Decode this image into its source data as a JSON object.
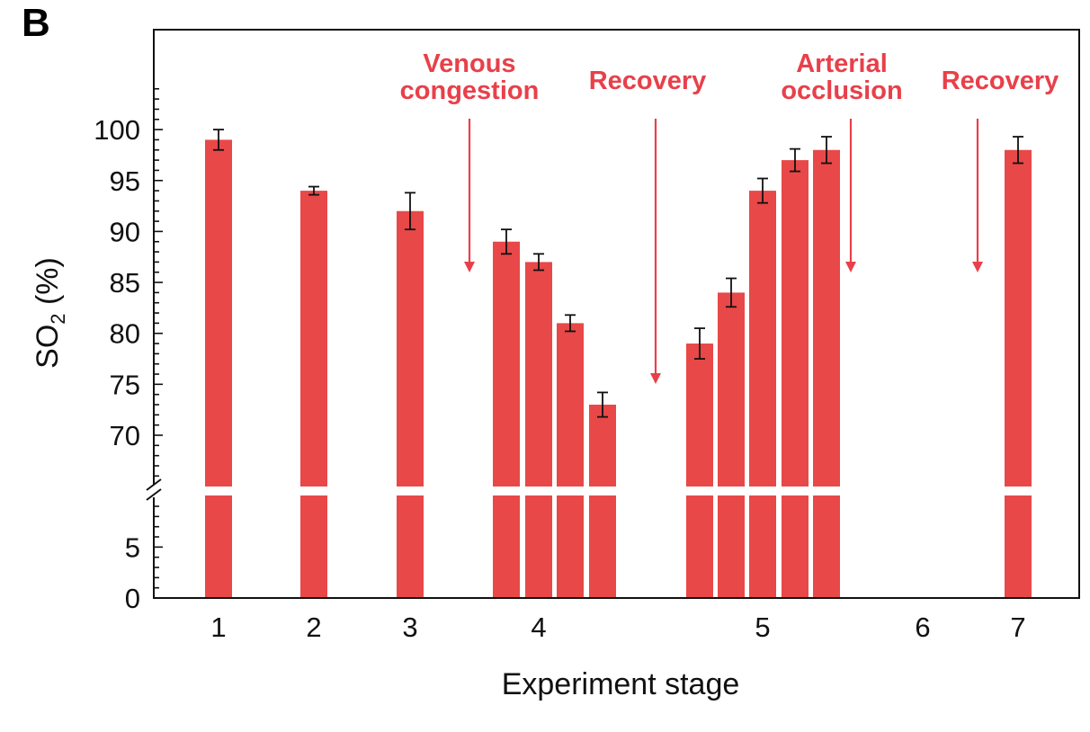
{
  "panel_label": "B",
  "chart_data": {
    "type": "bar",
    "xlabel": "Experiment stage",
    "ylabel": "SO",
    "ylabel_subscript": "2",
    "ylabel_suffix": " (%)",
    "x_ticks": [
      "1",
      "2",
      "3",
      "4",
      "5",
      "6",
      "7"
    ],
    "y_ticks_lower": [
      "0",
      "5"
    ],
    "y_ticks_upper": [
      "70",
      "75",
      "80",
      "85",
      "90",
      "95",
      "100"
    ],
    "y_axis_break": true,
    "ylim_lower": [
      0,
      9
    ],
    "ylim_upper": [
      66,
      105
    ],
    "bar_color": "#e84848",
    "annotation_color": "#e8404a",
    "bars": [
      {
        "stage": "1",
        "value": 99,
        "error": 1.0
      },
      {
        "stage": "2",
        "value": 94,
        "error": 0.4
      },
      {
        "stage": "3",
        "value": 92,
        "error": 1.8
      },
      {
        "stage": "4",
        "value": 89,
        "error": 1.2
      },
      {
        "stage": "4",
        "value": 87,
        "error": 0.8
      },
      {
        "stage": "4",
        "value": 81,
        "error": 0.8
      },
      {
        "stage": "4",
        "value": 73,
        "error": 1.2
      },
      {
        "stage": "5",
        "value": 79,
        "error": 1.5
      },
      {
        "stage": "5",
        "value": 84,
        "error": 1.4
      },
      {
        "stage": "5",
        "value": 94,
        "error": 1.2
      },
      {
        "stage": "5",
        "value": 97,
        "error": 1.1
      },
      {
        "stage": "5",
        "value": 98,
        "error": 1.3
      },
      {
        "stage": "7",
        "value": 98,
        "error": 1.3
      }
    ],
    "annotations": [
      {
        "lines": [
          "Venous",
          "congestion"
        ]
      },
      {
        "lines": [
          "Recovery"
        ]
      },
      {
        "lines": [
          "Arterial",
          "occlusion"
        ]
      },
      {
        "lines": [
          "Recovery"
        ]
      }
    ]
  }
}
